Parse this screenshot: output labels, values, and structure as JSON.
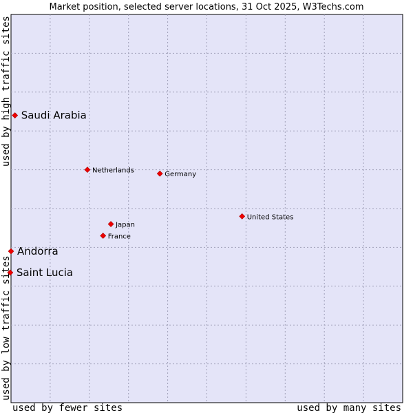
{
  "chart_data": {
    "type": "scatter",
    "title": "Market position, selected server locations, 31 Oct 2025, W3Techs.com",
    "xlabel_left": "used by fewer sites",
    "xlabel_right": "used by many sites",
    "ylabel_bottom": "used by low traffic sites",
    "ylabel_top": "used by high traffic sites",
    "xlim": [
      0,
      10
    ],
    "ylim": [
      0,
      10
    ],
    "grid": true,
    "points": [
      {
        "name": "Saudi Arabia",
        "x": 0.1,
        "y": 7.4,
        "size": "large"
      },
      {
        "name": "Netherlands",
        "x": 1.95,
        "y": 6.0,
        "size": "small"
      },
      {
        "name": "Germany",
        "x": 3.8,
        "y": 5.9,
        "size": "small"
      },
      {
        "name": "United States",
        "x": 5.9,
        "y": 4.8,
        "size": "small"
      },
      {
        "name": "Japan",
        "x": 2.55,
        "y": 4.6,
        "size": "small"
      },
      {
        "name": "France",
        "x": 2.35,
        "y": 4.3,
        "size": "small"
      },
      {
        "name": "Andorra",
        "x": 0.0,
        "y": 3.9,
        "size": "large"
      },
      {
        "name": "Saint Lucia",
        "x": -0.02,
        "y": 3.35,
        "size": "large"
      }
    ]
  },
  "colors": {
    "plot_bg": "#e4e4f8",
    "grid": "#a0a0b8",
    "point": "#ee0000",
    "point_stroke": "#aa0000",
    "frame": "#000000"
  }
}
